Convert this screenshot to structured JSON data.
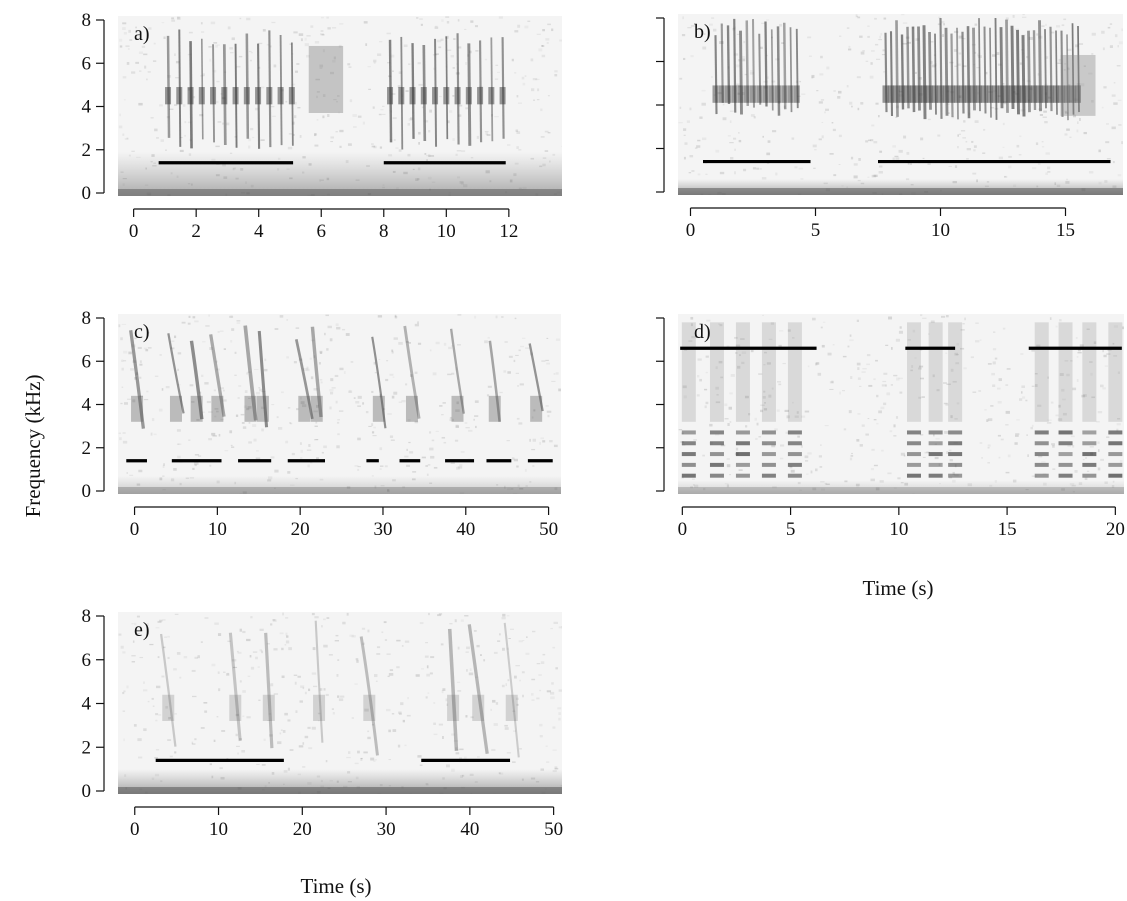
{
  "figure": {
    "ylabel": "Frequency (kHz)",
    "xlabel": "Time (s)"
  },
  "chart_data": [
    {
      "type": "heatmap",
      "panel": "a)",
      "xlim": [
        -0.5,
        13.7
      ],
      "ylim": [
        0,
        8
      ],
      "x_ticks": [
        0,
        2,
        4,
        6,
        8,
        10,
        12
      ],
      "y_ticks": [
        0,
        2,
        4,
        6,
        8
      ],
      "segments": [
        {
          "x": [
            0.8,
            5.1
          ],
          "y": 1.4
        },
        {
          "x": [
            8.0,
            11.9
          ],
          "y": 1.4
        }
      ],
      "energy": [
        {
          "kind": "trains",
          "start": 1.1,
          "step": 0.36,
          "count": 12,
          "y": [
            2.0,
            7.6
          ],
          "intensity": 0.7
        },
        {
          "kind": "block",
          "x": [
            5.6,
            6.7
          ],
          "y": [
            3.7,
            6.8
          ],
          "intensity": 0.45
        },
        {
          "kind": "trains",
          "start": 8.2,
          "step": 0.36,
          "count": 11,
          "y": [
            2.0,
            7.6
          ],
          "intensity": 0.7
        },
        {
          "kind": "noise",
          "y": [
            0,
            1.9
          ],
          "intensity": 0.55
        }
      ]
    },
    {
      "type": "heatmap",
      "panel": "b)",
      "xlim": [
        -0.5,
        17.3
      ],
      "ylim": [
        0,
        8
      ],
      "x_ticks": [
        0,
        5,
        10,
        15
      ],
      "y_ticks": [
        0,
        2,
        4,
        6,
        8
      ],
      "show_y_tick_labels": false,
      "segments": [
        {
          "x": [
            0.5,
            4.8
          ],
          "y": 1.4
        },
        {
          "x": [
            7.5,
            16.8
          ],
          "y": 1.4
        }
      ],
      "energy": [
        {
          "kind": "trains",
          "start": 1.0,
          "step": 0.25,
          "count": 14,
          "y": [
            3.5,
            8.0
          ],
          "intensity": 0.65
        },
        {
          "kind": "trains",
          "start": 7.8,
          "step": 0.22,
          "count": 36,
          "y": [
            3.3,
            8.0
          ],
          "intensity": 0.7
        },
        {
          "kind": "block",
          "x": [
            14.8,
            16.2
          ],
          "y": [
            3.5,
            6.3
          ],
          "intensity": 0.4
        },
        {
          "kind": "noise",
          "y": [
            0,
            0.6
          ],
          "intensity": 0.6
        }
      ]
    },
    {
      "type": "heatmap",
      "panel": "c)",
      "xlim": [
        -2.0,
        51.5
      ],
      "ylim": [
        0,
        8
      ],
      "x_ticks": [
        0,
        10,
        20,
        30,
        40,
        50
      ],
      "y_ticks": [
        0,
        2,
        4,
        6,
        8
      ],
      "segments": [
        {
          "x": [
            -1,
            1.5
          ],
          "y": 1.4
        },
        {
          "x": [
            4.5,
            10.5
          ],
          "y": 1.4
        },
        {
          "x": [
            12.5,
            16.5
          ],
          "y": 1.4
        },
        {
          "x": [
            18.5,
            23
          ],
          "y": 1.4
        },
        {
          "x": [
            28,
            29.5
          ],
          "y": 1.4
        },
        {
          "x": [
            32,
            34.5
          ],
          "y": 1.4
        },
        {
          "x": [
            37.5,
            41
          ],
          "y": 1.4
        },
        {
          "x": [
            42.5,
            45.5
          ],
          "y": 1.4
        },
        {
          "x": [
            47.5,
            50.5
          ],
          "y": 1.4
        }
      ],
      "energy": [
        {
          "kind": "sweeps",
          "xs": [
            0.3,
            5,
            7.5,
            10,
            14,
            15.5,
            20.5,
            22,
            29.5,
            33.5,
            39,
            43.5,
            48.5
          ],
          "y": [
            2.8,
            7.8
          ],
          "intensity": 0.6
        },
        {
          "kind": "noise",
          "y": [
            0,
            0.7
          ],
          "intensity": 0.35
        }
      ]
    },
    {
      "type": "heatmap",
      "panel": "d)",
      "xlim": [
        -0.2,
        20.4
      ],
      "ylim": [
        0,
        8
      ],
      "x_ticks": [
        0,
        5,
        10,
        15,
        20
      ],
      "y_ticks": [
        0,
        2,
        4,
        6,
        8
      ],
      "show_y_tick_labels": false,
      "segments": [
        {
          "x": [
            -0.1,
            6.2
          ],
          "y": 6.6
        },
        {
          "x": [
            10.3,
            12.6
          ],
          "y": 6.6
        },
        {
          "x": [
            16.0,
            20.3
          ],
          "y": 6.6
        }
      ],
      "energy": [
        {
          "kind": "notes",
          "xs": [
            0.3,
            1.6,
            2.8,
            4.0,
            5.2,
            10.7,
            11.7,
            12.6,
            16.6,
            17.7,
            18.8,
            20.0
          ],
          "y": [
            0.3,
            7.8
          ],
          "intensity": 0.75
        },
        {
          "kind": "noise",
          "y": [
            0,
            0.5
          ],
          "intensity": 0.3
        }
      ]
    },
    {
      "type": "heatmap",
      "panel": "e)",
      "xlim": [
        -2.0,
        51.0
      ],
      "ylim": [
        0,
        8
      ],
      "x_ticks": [
        0,
        10,
        20,
        30,
        40,
        50
      ],
      "y_ticks": [
        0,
        2,
        4,
        6,
        8
      ],
      "segments": [
        {
          "x": [
            2.5,
            17.8
          ],
          "y": 1.4
        },
        {
          "x": [
            34.2,
            44.8
          ],
          "y": 1.4
        }
      ],
      "energy": [
        {
          "kind": "sweeps",
          "xs": [
            4,
            12,
            16,
            22,
            28,
            38,
            41,
            45
          ],
          "y": [
            1.5,
            8.0
          ],
          "intensity": 0.35
        },
        {
          "kind": "noise",
          "y": [
            0,
            1.0
          ],
          "intensity": 0.6
        }
      ]
    }
  ]
}
